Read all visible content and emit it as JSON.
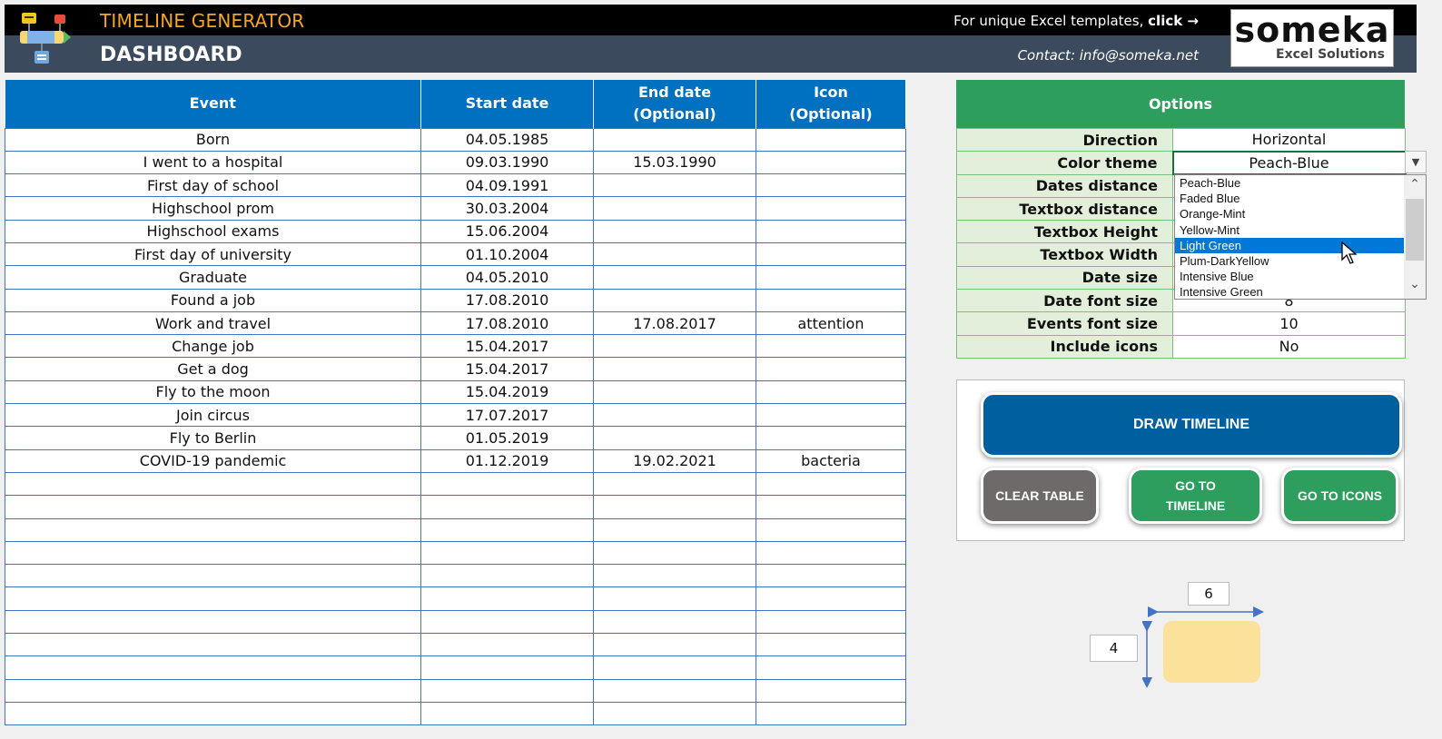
{
  "header": {
    "app_title": "TIMELINE GENERATOR",
    "subtitle": "DASHBOARD",
    "promo_text": "For unique Excel templates,",
    "promo_link": "click →",
    "contact": "Contact: info@someka.net",
    "logo_word": "someka",
    "logo_sub": "Excel Solutions",
    "app_icon": "timeline-app-icon",
    "colors": {
      "top_bar": "#000000",
      "bottom_bar": "#3b4a5c",
      "title": "#f5a623"
    }
  },
  "events_table": {
    "headers": [
      "Event",
      "Start date",
      "End date\n(Optional)",
      "Icon\n(Optional)"
    ],
    "header_color": "#0070c0",
    "rows": [
      [
        "Born",
        "04.05.1985",
        "",
        ""
      ],
      [
        "I went to a hospital",
        "09.03.1990",
        "15.03.1990",
        ""
      ],
      [
        "First day of school",
        "04.09.1991",
        "",
        ""
      ],
      [
        "Highschool prom",
        "30.03.2004",
        "",
        ""
      ],
      [
        "Highschool exams",
        "15.06.2004",
        "",
        ""
      ],
      [
        "First day of university",
        "01.10.2004",
        "",
        ""
      ],
      [
        "Graduate",
        "04.05.2010",
        "",
        ""
      ],
      [
        "Found a job",
        "17.08.2010",
        "",
        ""
      ],
      [
        "Work and travel",
        "17.08.2010",
        "17.08.2017",
        "attention"
      ],
      [
        "Change job",
        "15.04.2017",
        "",
        ""
      ],
      [
        "Get a dog",
        "15.04.2017",
        "",
        ""
      ],
      [
        "Fly to the moon",
        "15.04.2019",
        "",
        ""
      ],
      [
        "Join circus",
        "17.07.2017",
        "",
        ""
      ],
      [
        "Fly to Berlin",
        "01.05.2019",
        "",
        ""
      ],
      [
        "COVID-19 pandemic",
        "01.12.2019",
        "19.02.2021",
        "bacteria"
      ],
      [
        "",
        "",
        "",
        ""
      ],
      [
        "",
        "",
        "",
        ""
      ],
      [
        "",
        "",
        "",
        ""
      ],
      [
        "",
        "",
        "",
        ""
      ],
      [
        "",
        "",
        "",
        ""
      ],
      [
        "",
        "",
        "",
        ""
      ],
      [
        "",
        "",
        "",
        ""
      ],
      [
        "",
        "",
        "",
        ""
      ],
      [
        "",
        "",
        "",
        ""
      ],
      [
        "",
        "",
        "",
        ""
      ],
      [
        "",
        "",
        "",
        ""
      ]
    ]
  },
  "options": {
    "title": "Options",
    "header_color": "#2e9e5e",
    "rows": [
      {
        "label": "Direction",
        "value": "Horizontal"
      },
      {
        "label": "Color theme",
        "value": "Peach-Blue"
      },
      {
        "label": "Dates distance",
        "value": ""
      },
      {
        "label": "Textbox distance",
        "value": ""
      },
      {
        "label": "Textbox Height",
        "value": ""
      },
      {
        "label": "Textbox Width",
        "value": ""
      },
      {
        "label": "Date size",
        "value": ""
      },
      {
        "label": "Date font size",
        "value": "8"
      },
      {
        "label": "Events font size",
        "value": "10"
      },
      {
        "label": "Include  icons",
        "value": "No"
      }
    ],
    "dropdown": {
      "items": [
        "Peach-Blue",
        "Faded Blue",
        "Orange-Mint",
        "Yellow-Mint",
        "Light Green",
        "Plum-DarkYellow",
        "Intensive Blue",
        "Intensive Green"
      ],
      "selected": "Light Green",
      "highlight_color": "#0078d7"
    }
  },
  "buttons": {
    "draw": "DRAW TIMELINE",
    "clear": "CLEAR TABLE",
    "goto_timeline_1": "GO TO",
    "goto_timeline_2": "TIMELINE",
    "goto_icons": "GO TO ICONS"
  },
  "preview": {
    "width_value": "6",
    "height_value": "4",
    "box_color": "#fbe19a"
  }
}
